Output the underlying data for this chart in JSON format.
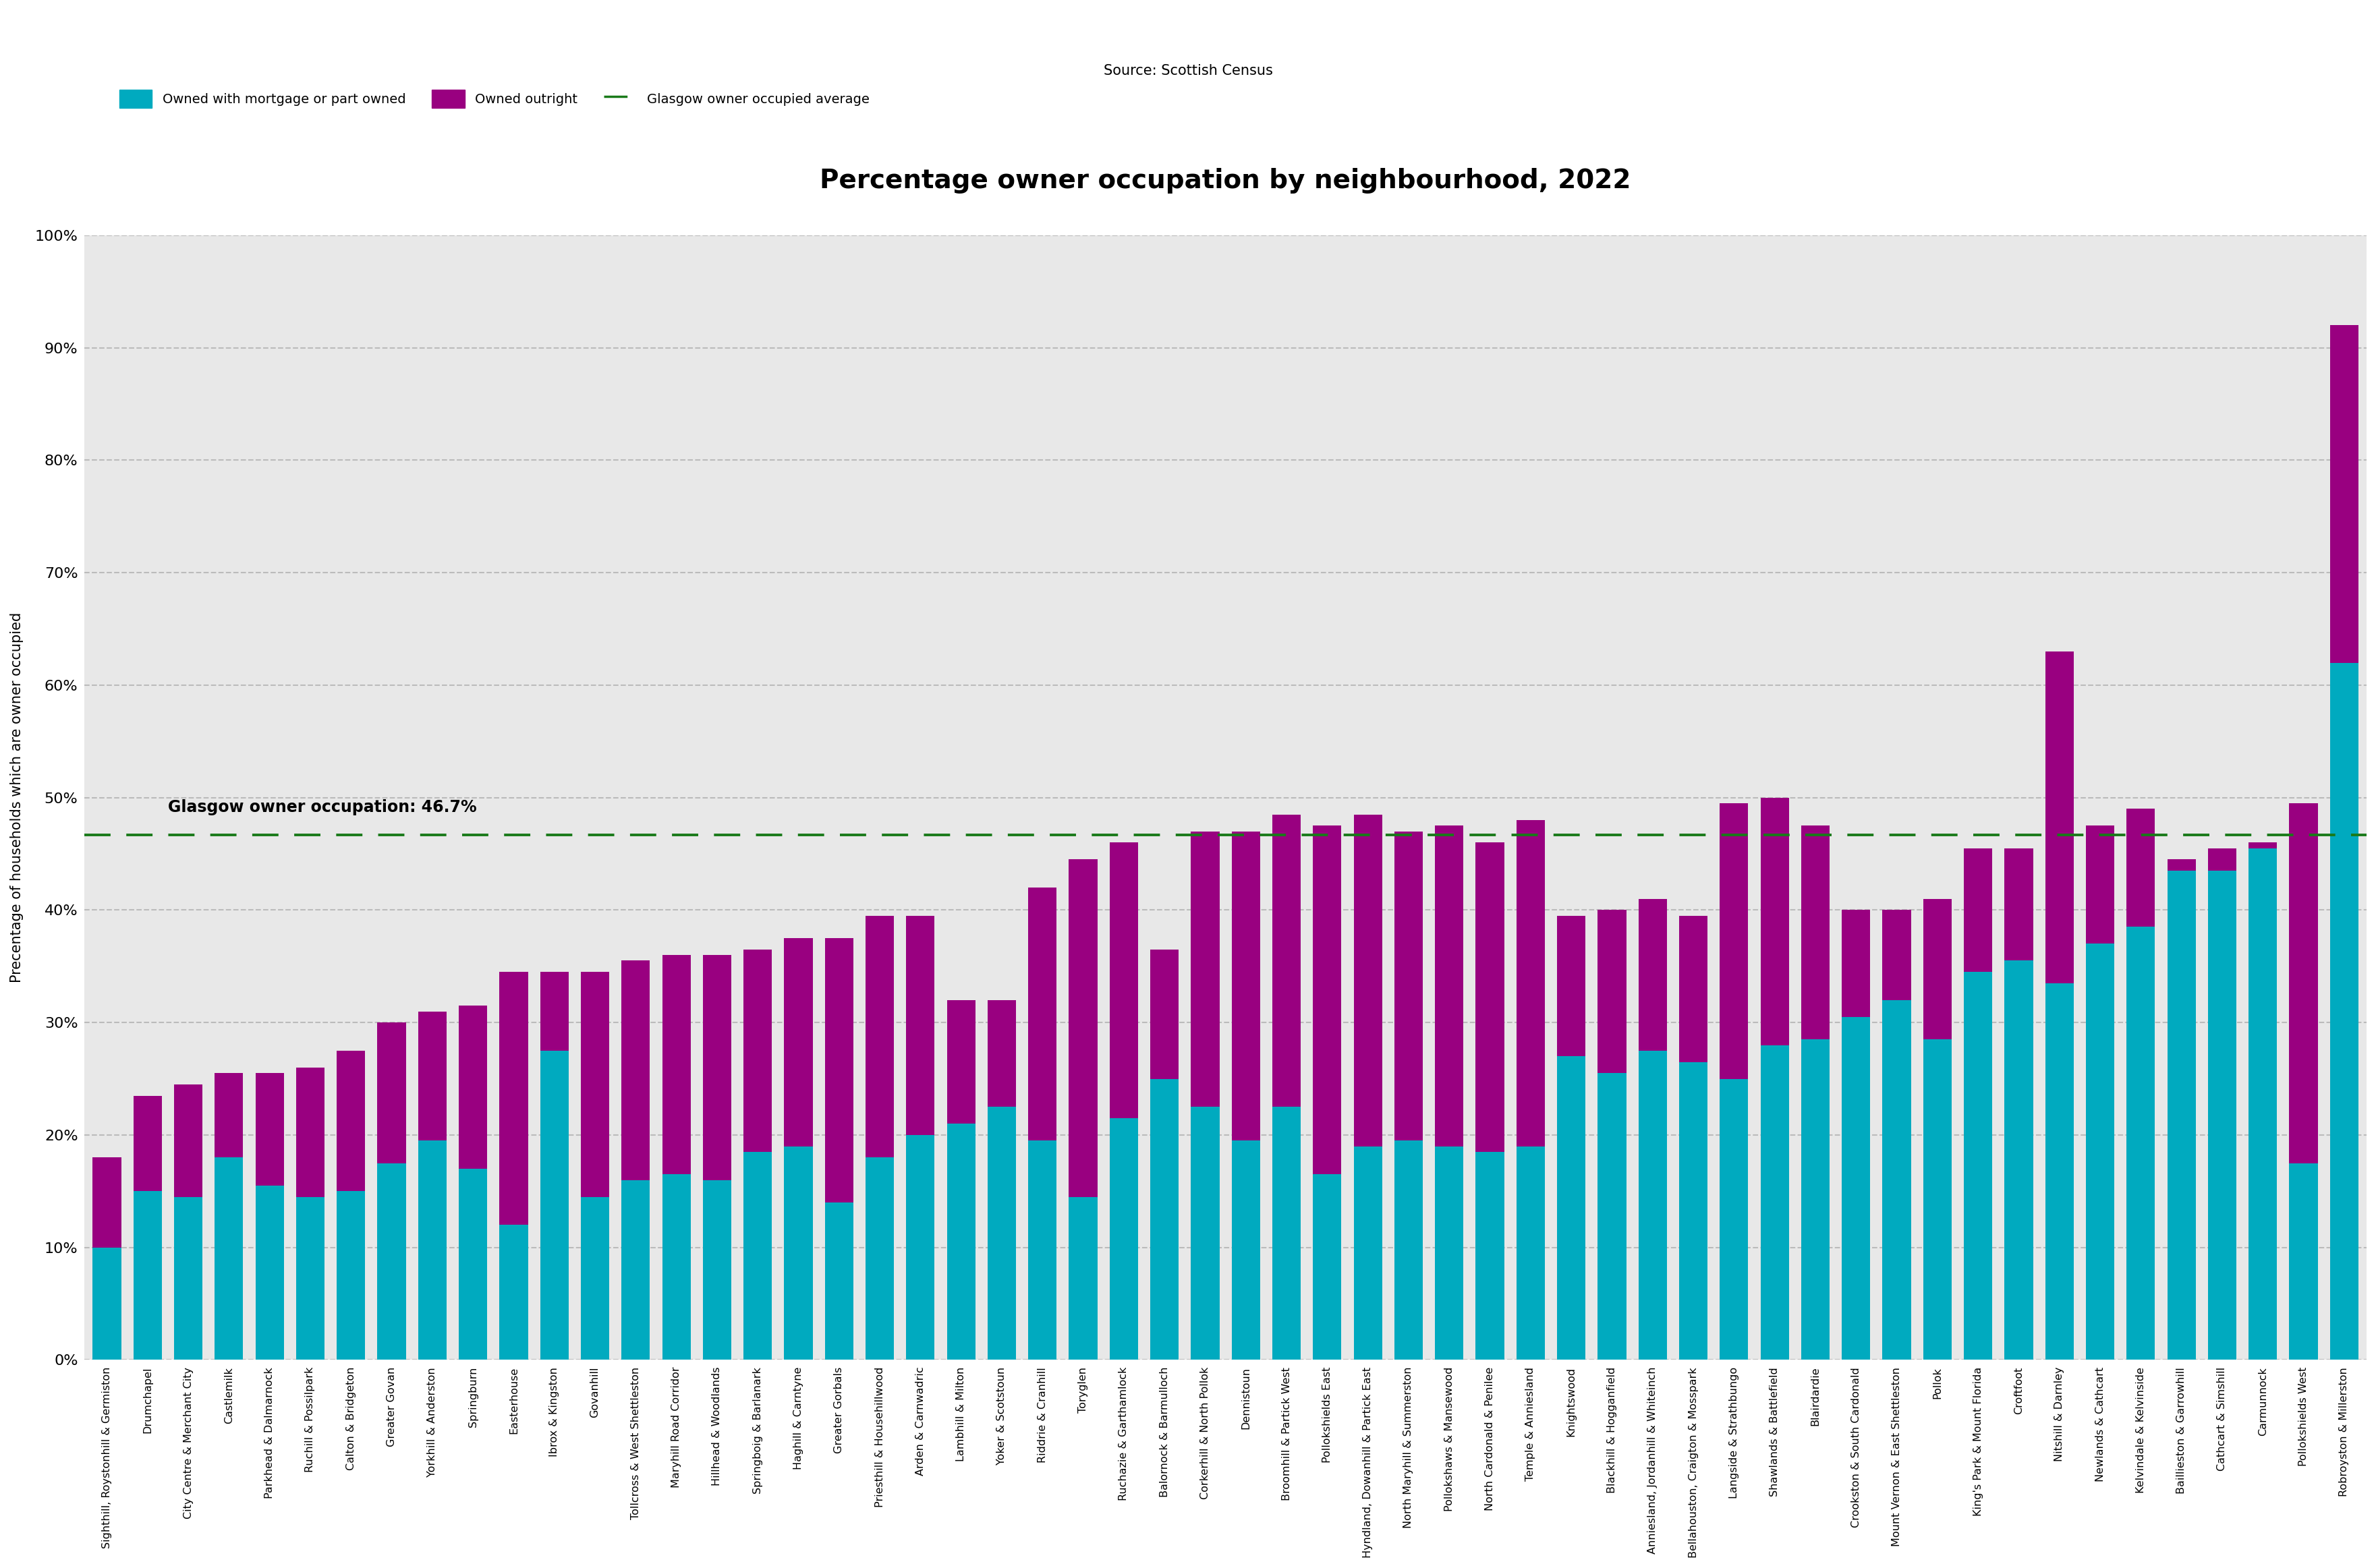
{
  "title": "Percentage owner occupation by neighbourhood, 2022",
  "subtitle": "Source: Scottish Census",
  "ylabel": "Precentage of households which are owner occupied",
  "glasgow_avg": 46.7,
  "glasgow_avg_label": "Glasgow owner occupation: 46.7%",
  "color_mortgage": "#00AABF",
  "color_outright": "#990080",
  "color_avg_line": "#1a7a1a",
  "legend_mortgage": "Owned with mortgage or part owned",
  "legend_outright": "Owned outright",
  "legend_avg": "Glasgow owner occupied average",
  "neighbourhoods": [
    "Sighthill, Roystonhill & Germiston",
    "Drumchapel",
    "City Centre & Merchant City",
    "Castlemilk",
    "Parkhead & Dalmarnock",
    "Ruchill & Possilpark",
    "Calton & Bridgeton",
    "Greater Govan",
    "Yorkhill & Anderston",
    "Springburn",
    "Easterhouse",
    "Ibrox & Kingston",
    "Govanhill",
    "Tollcross & West Shettleston",
    "Maryhill Road Corridor",
    "Hillhead & Woodlands",
    "Springboig & Barlanark",
    "Haghill & Carntyne",
    "Greater Gorbals",
    "Priesthill & Househillwood",
    "Arden & Carnwadric",
    "Lambhill & Milton",
    "Yoker & Scotstoun",
    "Riddrie & Cranhill",
    "Toryglen",
    "Ruchazie & Garthamlock",
    "Balornock & Barmulloch",
    "Corkerhill & North Pollok",
    "Dennistoun",
    "Broomhill & Partick West",
    "Pollokshields East",
    "Hyndland, Dowanhill & Partick East",
    "North Maryhill & Summerston",
    "Pollokshaws & Mansewood",
    "North Cardonald & Penilee",
    "Temple & Anniesland",
    "Knightswood",
    "Blackhill & Hogganfield",
    "Anniesland, Jordanhill & Whiteinch",
    "Bellahouston, Craigton & Mosspark",
    "Langside & Strathbungo",
    "Shawlands & Battlefield",
    "Blairdardie",
    "Crookston & South Cardonald",
    "Mount Vernon & East Shettleston",
    "Pollok",
    "King's Park & Mount Florida",
    "Croftfoot",
    "Nitshill & Darnley",
    "Newlands & Cathcart",
    "Kelvindale & Kelvinside",
    "Baillieston & Garrowhill",
    "Cathcart & Simshill",
    "Carmunnock",
    "Pollokshields West",
    "Robroyston & Millerston"
  ],
  "mortgage": [
    10.0,
    15.0,
    14.5,
    18.0,
    15.5,
    14.5,
    15.0,
    17.5,
    19.5,
    17.0,
    12.0,
    27.5,
    14.5,
    16.0,
    16.5,
    16.0,
    18.5,
    19.0,
    14.0,
    18.0,
    20.0,
    21.0,
    22.5,
    19.5,
    14.5,
    21.5,
    25.0,
    22.5,
    19.5,
    22.5,
    16.5,
    19.0,
    19.5,
    19.0,
    18.5,
    19.0,
    27.0,
    25.5,
    27.5,
    26.5,
    25.0,
    28.0,
    28.5,
    30.5,
    32.0,
    28.5,
    34.5,
    35.5,
    33.5,
    37.0,
    38.5,
    43.5,
    43.5,
    45.5,
    17.5,
    62.0
  ],
  "outright": [
    8.0,
    8.5,
    10.0,
    7.5,
    10.0,
    11.5,
    12.5,
    12.5,
    11.5,
    14.5,
    22.5,
    7.0,
    20.0,
    19.5,
    19.5,
    20.0,
    18.0,
    18.5,
    23.5,
    21.5,
    19.5,
    11.0,
    9.5,
    22.5,
    30.0,
    24.5,
    11.5,
    24.5,
    27.5,
    26.0,
    31.0,
    29.5,
    27.5,
    28.5,
    27.5,
    29.0,
    12.5,
    14.5,
    13.5,
    13.0,
    24.5,
    22.0,
    19.0,
    9.5,
    8.0,
    12.5,
    11.0,
    10.0,
    29.5,
    10.5,
    10.5,
    1.0,
    2.0,
    0.5,
    32.0,
    30.0
  ],
  "background_color": "#ffffff",
  "plot_bg_color": "#e8e8e8"
}
